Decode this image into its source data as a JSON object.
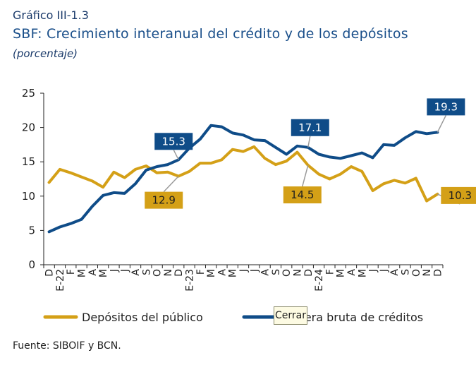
{
  "figure": {
    "number": "Gráfico III-1.3",
    "title": "SBF: Crecimiento interanual del crédito y de los depósitos",
    "subtitle": "(porcentaje)",
    "source": "Fuente: SIBOIF y BCN."
  },
  "tooltip": {
    "close_label": "Cerrar"
  },
  "chart_data": {
    "type": "line",
    "ylim": [
      0,
      25
    ],
    "yticks": [
      0,
      5,
      10,
      15,
      20,
      25
    ],
    "grid": false,
    "legend_position": "bottom",
    "categories": [
      "D",
      "E-22",
      "F",
      "M",
      "A",
      "M",
      "J",
      "J",
      "A",
      "S",
      "O",
      "N",
      "D",
      "E-23",
      "F",
      "M",
      "A",
      "M",
      "J",
      "J",
      "A",
      "S",
      "O",
      "N",
      "D",
      "E-24",
      "F",
      "M",
      "A",
      "M",
      "J",
      "J",
      "A",
      "S",
      "O",
      "N",
      "D"
    ],
    "series": [
      {
        "name": "Depósitos del público",
        "color": "#d4a017",
        "values": [
          12.0,
          13.9,
          13.4,
          12.8,
          12.2,
          11.3,
          13.5,
          12.7,
          13.9,
          14.4,
          13.4,
          13.5,
          12.9,
          13.6,
          14.8,
          14.8,
          15.3,
          16.8,
          16.5,
          17.2,
          15.5,
          14.6,
          15.1,
          16.4,
          14.5,
          13.2,
          12.5,
          13.2,
          14.3,
          13.6,
          10.8,
          11.8,
          12.3,
          11.9,
          12.6,
          9.3,
          10.3
        ],
        "labels": [
          {
            "index": 12,
            "text": "12.9"
          },
          {
            "index": 24,
            "text": "14.5"
          },
          {
            "index": 36,
            "text": "10.3"
          }
        ]
      },
      {
        "name": "Cartera bruta de créditos",
        "color": "#0f4c88",
        "values": [
          4.8,
          5.5,
          6.0,
          6.6,
          8.5,
          10.1,
          10.5,
          10.4,
          11.8,
          13.8,
          14.3,
          14.6,
          15.3,
          17.0,
          18.3,
          20.3,
          20.1,
          19.2,
          18.9,
          18.2,
          18.1,
          17.1,
          16.1,
          17.3,
          17.1,
          16.1,
          15.7,
          15.5,
          15.9,
          16.3,
          15.6,
          17.5,
          17.4,
          18.5,
          19.4,
          19.1,
          19.3
        ],
        "labels": [
          {
            "index": 12,
            "text": "15.3"
          },
          {
            "index": 24,
            "text": "17.1"
          },
          {
            "index": 36,
            "text": "19.3"
          }
        ]
      }
    ]
  }
}
